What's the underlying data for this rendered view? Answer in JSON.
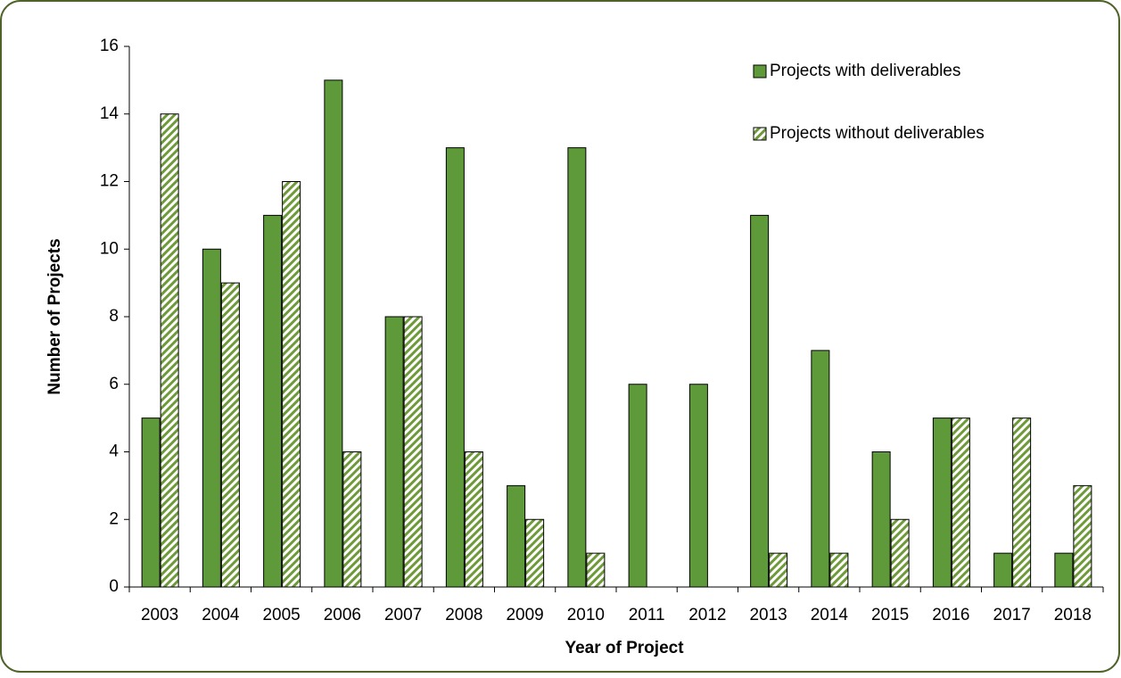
{
  "chart_data": {
    "type": "bar",
    "x_label": "Year of Project",
    "y_label": "Number of Projects",
    "categories": [
      "2003",
      "2004",
      "2005",
      "2006",
      "2007",
      "2008",
      "2009",
      "2010",
      "2011",
      "2012",
      "2013",
      "2014",
      "2015",
      "2016",
      "2017",
      "2018"
    ],
    "series": [
      {
        "name": "Projects with deliverables",
        "color": "#5f9a3a",
        "pattern": "solid",
        "values": [
          5,
          10,
          11,
          15,
          8,
          13,
          3,
          13,
          6,
          6,
          11,
          7,
          4,
          5,
          1,
          1
        ]
      },
      {
        "name": "Projects without deliverables",
        "color": "#6f9a3a",
        "pattern": "hatch",
        "values": [
          14,
          9,
          12,
          4,
          8,
          4,
          2,
          1,
          0,
          0,
          1,
          1,
          2,
          5,
          5,
          3
        ]
      }
    ],
    "ylim": [
      0,
      16
    ],
    "yticks": [
      0,
      2,
      4,
      6,
      8,
      10,
      12,
      14,
      16
    ],
    "legend": "top-right"
  }
}
